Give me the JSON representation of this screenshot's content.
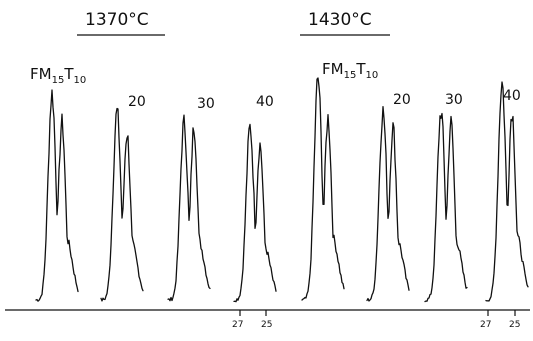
{
  "chart_data": {
    "type": "line",
    "xlabel": "",
    "ylabel": "",
    "grid": false,
    "legend": "none",
    "groups": [
      {
        "title": "1370°C",
        "sample_label": {
          "base": "FM",
          "sub1": "15",
          "mid": "T",
          "sub2": "10"
        },
        "series": [
          {
            "name": "",
            "peak_height": 0.93,
            "shoulder": 0.8
          },
          {
            "name": "20",
            "peak_height": 0.85,
            "shoulder": 0.75
          },
          {
            "name": "30",
            "peak_height": 0.8,
            "shoulder": 0.78
          },
          {
            "name": "40",
            "peak_height": 0.78,
            "shoulder": 0.7
          }
        ],
        "x_ticks": [
          "27",
          "25"
        ]
      },
      {
        "title": "1430°C",
        "sample_label": {
          "base": "FM",
          "sub1": "15",
          "mid": "T",
          "sub2": "10"
        },
        "series": [
          {
            "name": "",
            "peak_height": 1.0,
            "shoulder": 0.82
          },
          {
            "name": "20",
            "peak_height": 0.85,
            "shoulder": 0.78
          },
          {
            "name": "30",
            "peak_height": 0.85,
            "shoulder": 0.8
          },
          {
            "name": "40",
            "peak_height": 0.98,
            "shoulder": 0.85
          }
        ],
        "x_ticks": [
          "27",
          "25"
        ]
      }
    ]
  }
}
